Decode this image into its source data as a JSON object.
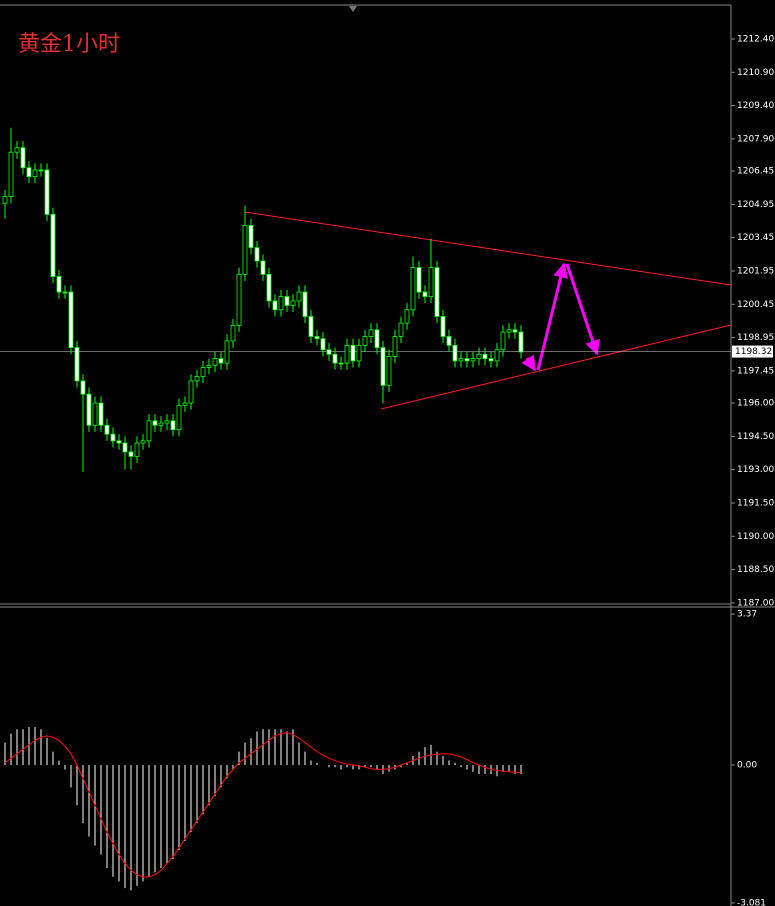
{
  "chart_data": [
    {
      "type": "candlestick",
      "title": "黄金1小时",
      "open": [
        1205.0,
        1205.3,
        1207.3,
        1207.5,
        1206.6,
        1206.2,
        1206.5,
        1206.5,
        1204.5,
        1201.7,
        1201.0,
        1201.0,
        1198.5,
        1197.0,
        1196.4,
        1195.0,
        1196.0,
        1195.0,
        1194.6,
        1194.3,
        1194.2,
        1193.8,
        1193.6,
        1194.2,
        1194.3,
        1195.2,
        1195.0,
        1195.1,
        1195.2,
        1194.8,
        1195.9,
        1196.0,
        1197.0,
        1197.2,
        1197.6,
        1197.7,
        1198.0,
        1197.8,
        1198.8,
        1199.5,
        1201.8,
        1204.0,
        1203.0,
        1202.4,
        1201.8,
        1200.6,
        1200.2,
        1200.8,
        1200.4,
        1200.6,
        1201.0,
        1199.9,
        1199.0,
        1198.9,
        1198.4,
        1198.2,
        1197.8,
        1197.8,
        1198.6,
        1197.9,
        1198.6,
        1199.0,
        1199.3,
        1198.5,
        1196.8,
        1198.1,
        1199.0,
        1199.6,
        1200.2,
        1202.1,
        1201.0,
        1200.8,
        1202.1,
        1199.9,
        1199.0,
        1198.6,
        1197.9,
        1198.0,
        1197.9,
        1198.0,
        1198.2,
        1198.0,
        1197.9,
        1198.4,
        1199.2,
        1199.3,
        1199.2
      ],
      "high": [
        1205.6,
        1208.4,
        1207.8,
        1207.8,
        1206.9,
        1206.8,
        1206.8,
        1206.8,
        1204.8,
        1202.0,
        1201.3,
        1201.3,
        1198.8,
        1197.3,
        1196.7,
        1196.3,
        1196.3,
        1195.3,
        1194.9,
        1194.6,
        1194.5,
        1194.1,
        1194.5,
        1194.6,
        1195.5,
        1195.5,
        1195.4,
        1195.5,
        1195.5,
        1196.2,
        1196.3,
        1197.3,
        1197.5,
        1197.9,
        1198.0,
        1198.3,
        1198.3,
        1199.1,
        1199.8,
        1202.1,
        1204.9,
        1204.3,
        1203.3,
        1202.7,
        1202.1,
        1200.9,
        1201.1,
        1201.1,
        1200.9,
        1201.3,
        1201.3,
        1200.2,
        1199.3,
        1199.2,
        1198.7,
        1198.5,
        1198.1,
        1198.9,
        1198.9,
        1198.9,
        1199.3,
        1199.6,
        1199.6,
        1198.8,
        1198.4,
        1199.3,
        1199.9,
        1200.5,
        1202.6,
        1202.4,
        1201.3,
        1203.4,
        1202.4,
        1200.2,
        1199.3,
        1198.9,
        1198.3,
        1198.3,
        1198.3,
        1198.5,
        1198.5,
        1198.3,
        1198.7,
        1199.5,
        1199.6,
        1199.6,
        1199.5
      ],
      "low": [
        1204.3,
        1205.0,
        1207.0,
        1206.3,
        1205.9,
        1205.9,
        1206.2,
        1204.2,
        1201.4,
        1200.7,
        1200.7,
        1198.2,
        1196.7,
        1192.9,
        1194.7,
        1194.7,
        1194.7,
        1194.3,
        1194.0,
        1193.9,
        1193.0,
        1193.0,
        1193.3,
        1193.9,
        1194.0,
        1194.7,
        1194.7,
        1194.8,
        1194.5,
        1194.5,
        1195.6,
        1195.7,
        1196.7,
        1196.9,
        1197.3,
        1197.4,
        1197.5,
        1197.5,
        1198.5,
        1199.2,
        1201.5,
        1202.7,
        1202.1,
        1201.5,
        1200.3,
        1199.9,
        1199.9,
        1200.1,
        1200.1,
        1200.3,
        1199.6,
        1198.7,
        1198.6,
        1198.1,
        1197.9,
        1197.5,
        1197.5,
        1197.5,
        1197.6,
        1197.6,
        1198.3,
        1198.7,
        1198.2,
        1196.0,
        1196.5,
        1197.8,
        1198.7,
        1199.3,
        1199.9,
        1200.7,
        1200.5,
        1200.5,
        1199.6,
        1198.7,
        1198.3,
        1197.6,
        1197.6,
        1197.6,
        1197.6,
        1197.7,
        1197.7,
        1197.6,
        1197.6,
        1198.1,
        1198.9,
        1198.9,
        1198.0
      ],
      "close": [
        1205.3,
        1207.3,
        1207.5,
        1206.6,
        1206.2,
        1206.5,
        1206.5,
        1204.5,
        1201.7,
        1201.0,
        1201.0,
        1198.5,
        1197.0,
        1196.4,
        1195.0,
        1196.0,
        1195.0,
        1194.6,
        1194.3,
        1194.2,
        1193.8,
        1193.6,
        1194.2,
        1194.3,
        1195.2,
        1195.0,
        1195.1,
        1195.2,
        1194.8,
        1195.9,
        1196.0,
        1197.0,
        1197.2,
        1197.6,
        1197.7,
        1198.0,
        1197.8,
        1198.8,
        1199.5,
        1201.8,
        1204.0,
        1203.0,
        1202.4,
        1201.8,
        1200.6,
        1200.2,
        1200.8,
        1200.4,
        1200.6,
        1201.0,
        1199.9,
        1199.0,
        1198.9,
        1198.4,
        1198.2,
        1197.8,
        1197.8,
        1198.6,
        1197.9,
        1198.6,
        1199.0,
        1199.3,
        1198.5,
        1196.8,
        1198.1,
        1199.0,
        1199.6,
        1200.2,
        1202.1,
        1201.0,
        1200.8,
        1202.1,
        1199.9,
        1199.0,
        1198.6,
        1197.9,
        1198.0,
        1197.9,
        1198.0,
        1198.2,
        1198.0,
        1197.9,
        1198.4,
        1199.2,
        1199.3,
        1199.2,
        1198.3
      ],
      "up_color": "#000000",
      "down_color": "#ffffff",
      "wick_color": "#00ff00",
      "last_price": 1198.32,
      "ylim": [
        1186.95,
        1213.93
      ],
      "yticks": [
        {
          "value": 1212.4,
          "label": "1212.40"
        },
        {
          "value": 1210.9,
          "label": "1210.90"
        },
        {
          "value": 1209.4,
          "label": "1209.40"
        },
        {
          "value": 1207.9,
          "label": "1207.90"
        },
        {
          "value": 1206.45,
          "label": "1206.45"
        },
        {
          "value": 1204.95,
          "label": "1204.95"
        },
        {
          "value": 1203.45,
          "label": "1203.45"
        },
        {
          "value": 1201.95,
          "label": "1201.95"
        },
        {
          "value": 1200.45,
          "label": "1200.45"
        },
        {
          "value": 1198.95,
          "label": "1198.95"
        },
        {
          "value": 1197.45,
          "label": "1197.45"
        },
        {
          "value": 1196.0,
          "label": "1196.00"
        },
        {
          "value": 1194.5,
          "label": "1194.50"
        },
        {
          "value": 1193.0,
          "label": "1193.00"
        },
        {
          "value": 1191.5,
          "label": "1191.50"
        },
        {
          "value": 1190.0,
          "label": "1190.00"
        },
        {
          "value": 1188.5,
          "label": "1188.50"
        },
        {
          "value": 1187.0,
          "label": "1187.00"
        }
      ]
    },
    {
      "type": "macd",
      "histogram": [
        0.5,
        0.7,
        0.8,
        0.8,
        0.85,
        0.85,
        0.8,
        0.6,
        0.3,
        0.1,
        -0.1,
        -0.5,
        -0.9,
        -1.3,
        -1.6,
        -1.8,
        -2.0,
        -2.3,
        -2.5,
        -2.6,
        -2.75,
        -2.8,
        -2.7,
        -2.6,
        -2.5,
        -2.4,
        -2.3,
        -2.2,
        -2.1,
        -1.9,
        -1.7,
        -1.5,
        -1.3,
        -1.1,
        -0.9,
        -0.7,
        -0.5,
        -0.3,
        -0.1,
        0.3,
        0.5,
        0.6,
        0.75,
        0.8,
        0.8,
        0.8,
        0.8,
        0.75,
        0.8,
        0.5,
        0.3,
        0.1,
        0.05,
        0,
        -0.05,
        -0.05,
        -0.1,
        -0.05,
        -0.1,
        -0.1,
        -0.05,
        -0.05,
        -0.1,
        -0.2,
        -0.15,
        -0.1,
        -0.05,
        0.05,
        0.2,
        0.3,
        0.4,
        0.45,
        0.3,
        0.2,
        0.1,
        0.05,
        -0.05,
        -0.1,
        -0.15,
        -0.2,
        -0.2,
        -0.2,
        -0.25,
        -0.15,
        -0.15,
        -0.2,
        -0.2
      ],
      "signal": [
        0.05,
        0.15,
        0.25,
        0.35,
        0.45,
        0.55,
        0.62,
        0.65,
        0.62,
        0.55,
        0.42,
        0.25,
        0.0,
        -0.3,
        -0.6,
        -0.9,
        -1.2,
        -1.5,
        -1.75,
        -2.0,
        -2.2,
        -2.35,
        -2.45,
        -2.5,
        -2.5,
        -2.45,
        -2.35,
        -2.2,
        -2.05,
        -1.85,
        -1.65,
        -1.45,
        -1.25,
        -1.05,
        -0.85,
        -0.65,
        -0.45,
        -0.25,
        -0.1,
        0.05,
        0.15,
        0.25,
        0.35,
        0.45,
        0.55,
        0.65,
        0.7,
        0.72,
        0.68,
        0.6,
        0.5,
        0.4,
        0.3,
        0.22,
        0.15,
        0.1,
        0.05,
        0.02,
        0.0,
        -0.02,
        -0.05,
        -0.08,
        -0.1,
        -0.1,
        -0.08,
        -0.05,
        0.0,
        0.05,
        0.1,
        0.15,
        0.2,
        0.22,
        0.24,
        0.25,
        0.25,
        0.22,
        0.18,
        0.12,
        0.05,
        0.0,
        -0.05,
        -0.1,
        -0.12,
        -0.14,
        -0.15,
        -0.16,
        -0.17
      ],
      "histogram_color": "#ffffff",
      "signal_color": "#ff0000",
      "ylim": [
        -3.15,
        3.53
      ],
      "yticks": [
        3.37,
        {
          "value": 0,
          "label": "0.00"
        },
        -3.081
      ]
    }
  ]
}
